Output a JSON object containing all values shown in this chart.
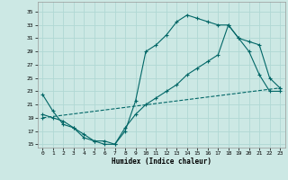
{
  "xlabel": "Humidex (Indice chaleur)",
  "background_color": "#cce8e4",
  "grid_color": "#b0d8d4",
  "line_color": "#006666",
  "xlim": [
    -0.5,
    23.5
  ],
  "ylim": [
    14.5,
    36.5
  ],
  "yticks": [
    15,
    17,
    19,
    21,
    23,
    25,
    27,
    29,
    31,
    33,
    35
  ],
  "xticks": [
    0,
    1,
    2,
    3,
    4,
    5,
    6,
    7,
    8,
    9,
    10,
    11,
    12,
    13,
    14,
    15,
    16,
    17,
    18,
    19,
    20,
    21,
    22,
    23
  ],
  "line1_x": [
    0,
    1,
    2,
    3,
    4,
    5,
    6,
    7,
    8,
    9,
    10,
    11,
    12,
    13,
    14,
    15,
    16,
    17,
    18,
    19,
    20,
    21,
    22,
    23
  ],
  "line1_y": [
    22.5,
    20,
    18,
    17.5,
    16,
    15.5,
    15.5,
    15,
    17,
    21.5,
    29,
    30,
    31.5,
    33.5,
    34.5,
    34,
    33.5,
    33,
    33,
    31,
    29,
    25.5,
    23,
    23
  ],
  "line2_x": [
    0,
    1,
    2,
    3,
    4,
    5,
    6,
    7,
    8,
    9,
    10,
    11,
    12,
    13,
    14,
    15,
    16,
    17,
    18,
    19,
    20,
    21,
    22,
    23
  ],
  "line2_y": [
    19.5,
    19,
    18.5,
    17.5,
    16.5,
    15.5,
    15,
    15,
    17.5,
    19.5,
    21,
    22,
    23,
    24,
    25.5,
    26.5,
    27.5,
    28.5,
    33,
    31,
    30.5,
    30,
    25,
    23.5
  ],
  "line3_x": [
    0,
    23
  ],
  "line3_y": [
    19,
    23.5
  ],
  "line3_style": "--"
}
